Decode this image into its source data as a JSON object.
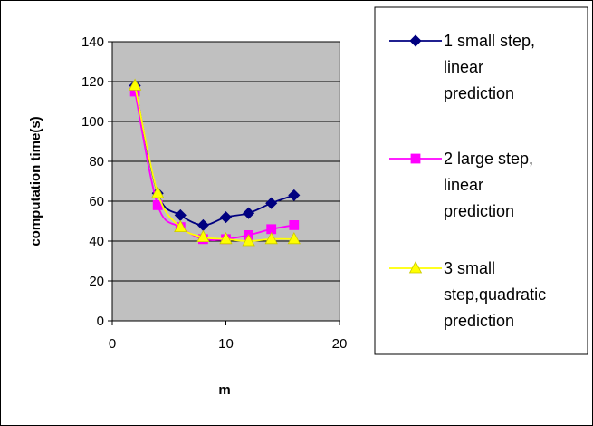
{
  "chart_data": {
    "type": "line",
    "title": "",
    "xlabel": "m",
    "ylabel": "computation time(s)",
    "xlim": [
      0,
      20
    ],
    "ylim": [
      0,
      140
    ],
    "x_ticks": [
      0,
      10,
      20
    ],
    "y_ticks": [
      0,
      20,
      40,
      60,
      80,
      100,
      120,
      140
    ],
    "grid": "horizontal",
    "plot_background": "#c0c0c0",
    "legend_position": "right",
    "smoothed": true,
    "x": [
      2,
      4,
      6,
      8,
      10,
      12,
      14,
      16
    ],
    "series": [
      {
        "name": "1 small step, linear prediction",
        "legend_lines": [
          "1 small step,",
          "linear",
          "prediction"
        ],
        "color": "#000080",
        "marker": "diamond",
        "values": [
          118,
          64,
          53,
          48,
          52,
          54,
          59,
          63
        ]
      },
      {
        "name": "2 large step, linear prediction",
        "legend_lines": [
          "2 large step,",
          "linear",
          "prediction"
        ],
        "color": "#ff00ff",
        "marker": "square",
        "values": [
          115,
          58,
          47,
          41,
          41,
          43,
          46,
          48
        ]
      },
      {
        "name": "3 small step,quadratic prediction",
        "legend_lines": [
          "3 small",
          "step,quadratic",
          "prediction"
        ],
        "color": "#ffff00",
        "marker": "triangle",
        "values": [
          118,
          64,
          47,
          42,
          41,
          40,
          41,
          41
        ]
      }
    ]
  }
}
